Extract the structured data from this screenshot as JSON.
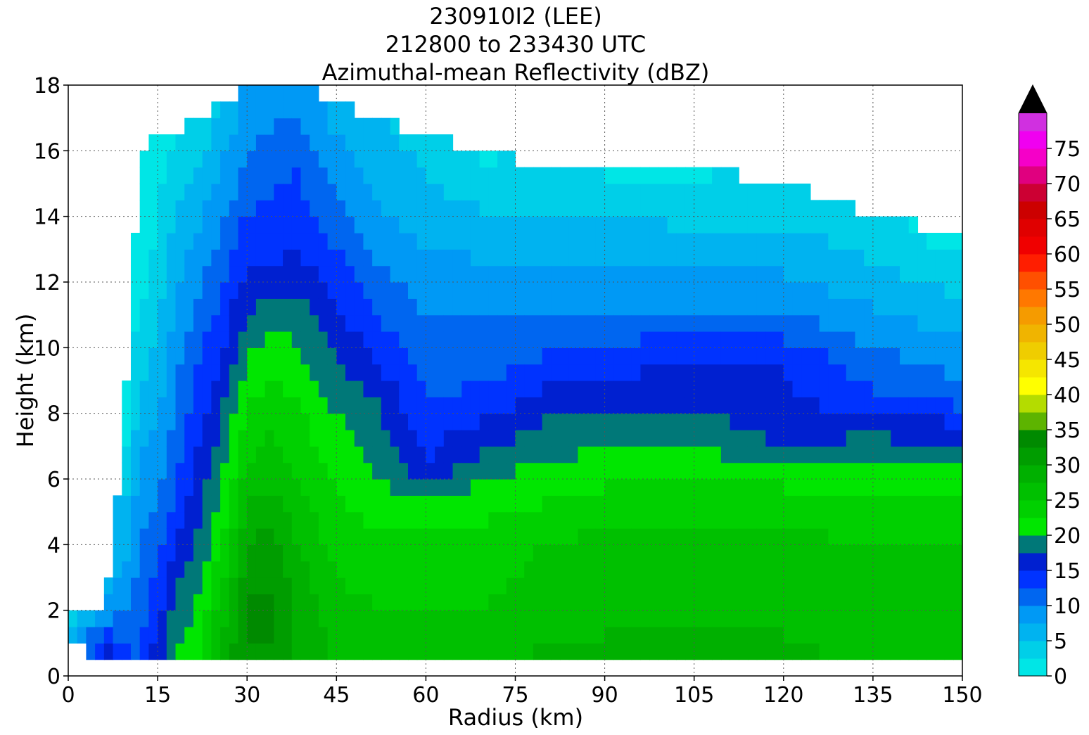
{
  "chart_data": {
    "type": "heatmap",
    "subtype": "filled-contour",
    "title_lines": [
      "230910I2 (LEE)",
      "212800 to 233430 UTC",
      "Azimuthal-mean Reflectivity (dBZ)"
    ],
    "xlabel": "Radius (km)",
    "ylabel": "Height (km)",
    "xlim": [
      0,
      150
    ],
    "ylim": [
      0,
      18
    ],
    "x_ticks": [
      0,
      15,
      30,
      45,
      60,
      75,
      90,
      105,
      120,
      135,
      150
    ],
    "y_ticks": [
      0,
      2,
      4,
      6,
      8,
      10,
      12,
      14,
      16,
      18
    ],
    "grid": true,
    "grid_style": "dotted",
    "colorbar": {
      "min": 0,
      "max": 80,
      "step": 2.5,
      "extend": "max",
      "tick_values": [
        0,
        5,
        10,
        15,
        20,
        25,
        30,
        35,
        40,
        45,
        50,
        55,
        60,
        65,
        70,
        75
      ],
      "colors": [
        "#00e6e6",
        "#00cfe8",
        "#00b3f0",
        "#0099f5",
        "#0066f0",
        "#0033ff",
        "#0020d0",
        "#007878",
        "#00e600",
        "#00d000",
        "#00c000",
        "#00b000",
        "#009d00",
        "#008a00",
        "#5db400",
        "#b4dc00",
        "#ffff00",
        "#f5e600",
        "#efcd00",
        "#f0b400",
        "#f59b00",
        "#ff7800",
        "#ff5000",
        "#ff1e00",
        "#f00000",
        "#e00000",
        "#cc0000",
        "#cc0033",
        "#e0007f",
        "#f500c8",
        "#f000f0",
        "#d030e0",
        "#a050d0",
        "#704090",
        "#402050"
      ],
      "extend_color": "#000000"
    },
    "field_description": "Azimuthal-mean reflectivity vs radius and height; grid has rows every 0.5 km from 0.5 to 18 km and columns every 1.5 km from 0 to 150 km; NaN regions are blank.",
    "profiles_by_radius": [
      {
        "r": 0,
        "min_z": 1.0,
        "top": 2.0,
        "levels": [
          {
            "h": 1.0,
            "v": 7
          },
          {
            "h": 1.5,
            "v": 4
          },
          {
            "h": 2.0,
            "v": 1
          }
        ]
      },
      {
        "r": 6,
        "min_z": 0.5,
        "top": 2.0,
        "levels": [
          {
            "h": 0.5,
            "v": 17
          },
          {
            "h": 1.5,
            "v": 12
          },
          {
            "h": 2.0,
            "v": 7
          }
        ]
      },
      {
        "r": 9,
        "min_z": 0.5,
        "top": 6.5,
        "levels": [
          {
            "h": 0.5,
            "v": 14
          },
          {
            "h": 3,
            "v": 7
          },
          {
            "h": 5,
            "v": 5
          },
          {
            "h": 6.5,
            "v": 1
          }
        ]
      },
      {
        "r": 12,
        "min_z": 0.5,
        "top": 16.0,
        "levels": [
          {
            "h": 0.5,
            "v": 12
          },
          {
            "h": 3,
            "v": 11
          },
          {
            "h": 6,
            "v": 8
          },
          {
            "h": 9,
            "v": 5
          },
          {
            "h": 12,
            "v": 1
          },
          {
            "h": 16,
            "v": 1
          }
        ]
      },
      {
        "r": 15,
        "min_z": 0.5,
        "top": 16.5,
        "levels": [
          {
            "h": 0.5,
            "v": 17
          },
          {
            "h": 2,
            "v": 14
          },
          {
            "h": 5,
            "v": 10
          },
          {
            "h": 9,
            "v": 6
          },
          {
            "h": 13,
            "v": 3
          },
          {
            "h": 16.5,
            "v": 1
          }
        ]
      },
      {
        "r": 18,
        "min_z": 0.5,
        "top": 16.5,
        "levels": [
          {
            "h": 0.5,
            "v": 20
          },
          {
            "h": 3,
            "v": 17
          },
          {
            "h": 6,
            "v": 12
          },
          {
            "h": 10,
            "v": 9
          },
          {
            "h": 14,
            "v": 5
          },
          {
            "h": 16.5,
            "v": 2
          }
        ]
      },
      {
        "r": 22,
        "min_z": 0.5,
        "top": 17.0,
        "levels": [
          {
            "h": 0.5,
            "v": 23
          },
          {
            "h": 3,
            "v": 19
          },
          {
            "h": 6,
            "v": 16
          },
          {
            "h": 10,
            "v": 12
          },
          {
            "h": 14,
            "v": 7
          },
          {
            "h": 17,
            "v": 3
          }
        ]
      },
      {
        "r": 26,
        "min_z": 0.5,
        "top": 17.5,
        "levels": [
          {
            "h": 0.5,
            "v": 29
          },
          {
            "h": 3,
            "v": 25
          },
          {
            "h": 6,
            "v": 20
          },
          {
            "h": 10,
            "v": 15
          },
          {
            "h": 13,
            "v": 11
          },
          {
            "h": 17.5,
            "v": 5
          }
        ]
      },
      {
        "r": 30,
        "min_z": 0.5,
        "top": 18.0,
        "levels": [
          {
            "h": 0.5,
            "v": 32
          },
          {
            "h": 2,
            "v": 33
          },
          {
            "h": 4,
            "v": 30
          },
          {
            "h": 6,
            "v": 26
          },
          {
            "h": 9,
            "v": 21
          },
          {
            "h": 12,
            "v": 16
          },
          {
            "h": 15,
            "v": 11
          },
          {
            "h": 18,
            "v": 8
          }
        ]
      },
      {
        "r": 34,
        "min_z": 0.5,
        "top": 18.0,
        "levels": [
          {
            "h": 0.5,
            "v": 32
          },
          {
            "h": 2,
            "v": 33
          },
          {
            "h": 4,
            "v": 31
          },
          {
            "h": 6,
            "v": 27
          },
          {
            "h": 8,
            "v": 24
          },
          {
            "h": 11,
            "v": 19
          },
          {
            "h": 13,
            "v": 14
          },
          {
            "h": 16,
            "v": 11
          },
          {
            "h": 18,
            "v": 8
          }
        ]
      },
      {
        "r": 38,
        "min_z": 0.5,
        "top": 18.0,
        "levels": [
          {
            "h": 0.5,
            "v": 30
          },
          {
            "h": 2,
            "v": 30
          },
          {
            "h": 4,
            "v": 28
          },
          {
            "h": 6,
            "v": 25
          },
          {
            "h": 8,
            "v": 23
          },
          {
            "h": 11,
            "v": 19
          },
          {
            "h": 13,
            "v": 15
          },
          {
            "h": 16,
            "v": 12
          },
          {
            "h": 18,
            "v": 9
          }
        ]
      },
      {
        "r": 45,
        "min_z": 0.5,
        "top": 17.5,
        "levels": [
          {
            "h": 0.5,
            "v": 27
          },
          {
            "h": 2,
            "v": 26
          },
          {
            "h": 4,
            "v": 24
          },
          {
            "h": 6,
            "v": 22
          },
          {
            "h": 8,
            "v": 20
          },
          {
            "h": 10,
            "v": 17
          },
          {
            "h": 12,
            "v": 14
          },
          {
            "h": 14,
            "v": 11
          },
          {
            "h": 17.5,
            "v": 6
          }
        ]
      },
      {
        "r": 52,
        "min_z": 0.5,
        "top": 17.0,
        "levels": [
          {
            "h": 0.5,
            "v": 26
          },
          {
            "h": 2,
            "v": 25
          },
          {
            "h": 4,
            "v": 23
          },
          {
            "h": 6,
            "v": 20
          },
          {
            "h": 8,
            "v": 18
          },
          {
            "h": 10,
            "v": 14
          },
          {
            "h": 12,
            "v": 11
          },
          {
            "h": 14,
            "v": 8
          },
          {
            "h": 17,
            "v": 5
          }
        ]
      },
      {
        "r": 60,
        "min_z": 0.5,
        "top": 16.5,
        "levels": [
          {
            "h": 0.5,
            "v": 27
          },
          {
            "h": 2,
            "v": 25
          },
          {
            "h": 4,
            "v": 23
          },
          {
            "h": 5.5,
            "v": 20
          },
          {
            "h": 6.5,
            "v": 15
          },
          {
            "h": 8,
            "v": 13
          },
          {
            "h": 10,
            "v": 11
          },
          {
            "h": 12,
            "v": 9
          },
          {
            "h": 14,
            "v": 6
          },
          {
            "h": 16.5,
            "v": 4
          }
        ]
      },
      {
        "r": 70,
        "min_z": 0.5,
        "top": 16.0,
        "levels": [
          {
            "h": 0.5,
            "v": 27
          },
          {
            "h": 2,
            "v": 25
          },
          {
            "h": 4,
            "v": 24
          },
          {
            "h": 6,
            "v": 20
          },
          {
            "h": 7.5,
            "v": 16
          },
          {
            "h": 9,
            "v": 12
          },
          {
            "h": 11,
            "v": 10
          },
          {
            "h": 13,
            "v": 7
          },
          {
            "h": 16,
            "v": 2
          }
        ]
      },
      {
        "r": 80,
        "min_z": 0.5,
        "top": 15.5,
        "levels": [
          {
            "h": 0.5,
            "v": 28
          },
          {
            "h": 2,
            "v": 26
          },
          {
            "h": 4,
            "v": 25
          },
          {
            "h": 6,
            "v": 21
          },
          {
            "h": 8,
            "v": 17
          },
          {
            "h": 9.5,
            "v": 13
          },
          {
            "h": 11,
            "v": 10
          },
          {
            "h": 13,
            "v": 7
          },
          {
            "h": 15.5,
            "v": 3
          }
        ]
      },
      {
        "r": 90,
        "min_z": 0.5,
        "top": 15.5,
        "levels": [
          {
            "h": 0.5,
            "v": 28
          },
          {
            "h": 2,
            "v": 27
          },
          {
            "h": 4,
            "v": 26
          },
          {
            "h": 6,
            "v": 22
          },
          {
            "h": 8,
            "v": 18
          },
          {
            "h": 9.5,
            "v": 14
          },
          {
            "h": 11,
            "v": 10
          },
          {
            "h": 13,
            "v": 7
          },
          {
            "h": 15.5,
            "v": 2
          }
        ]
      },
      {
        "r": 105,
        "min_z": 0.5,
        "top": 15.5,
        "levels": [
          {
            "h": 0.5,
            "v": 28
          },
          {
            "h": 2,
            "v": 27
          },
          {
            "h": 4,
            "v": 26
          },
          {
            "h": 6,
            "v": 22
          },
          {
            "h": 8,
            "v": 18
          },
          {
            "h": 10,
            "v": 14
          },
          {
            "h": 11.5,
            "v": 9
          },
          {
            "h": 13,
            "v": 6
          },
          {
            "h": 15.5,
            "v": 2
          }
        ]
      },
      {
        "r": 120,
        "min_z": 0.5,
        "top": 15.0,
        "levels": [
          {
            "h": 0.5,
            "v": 28
          },
          {
            "h": 2,
            "v": 27
          },
          {
            "h": 4,
            "v": 26
          },
          {
            "h": 6,
            "v": 22
          },
          {
            "h": 7.5,
            "v": 16
          },
          {
            "h": 9.5,
            "v": 15
          },
          {
            "h": 11,
            "v": 10
          },
          {
            "h": 12.5,
            "v": 7
          },
          {
            "h": 15,
            "v": 3
          }
        ]
      },
      {
        "r": 135,
        "min_z": 0.5,
        "top": 14.0,
        "levels": [
          {
            "h": 0.5,
            "v": 27
          },
          {
            "h": 2,
            "v": 27
          },
          {
            "h": 4,
            "v": 25
          },
          {
            "h": 6,
            "v": 21
          },
          {
            "h": 7.5,
            "v": 17
          },
          {
            "h": 8.5,
            "v": 13
          },
          {
            "h": 10,
            "v": 10
          },
          {
            "h": 12,
            "v": 6
          },
          {
            "h": 14,
            "v": 3
          }
        ]
      },
      {
        "r": 150,
        "min_z": 0.5,
        "top": 13.5,
        "levels": [
          {
            "h": 0.5,
            "v": 27
          },
          {
            "h": 2,
            "v": 27
          },
          {
            "h": 4,
            "v": 25
          },
          {
            "h": 6,
            "v": 21
          },
          {
            "h": 7.5,
            "v": 16
          },
          {
            "h": 8.5,
            "v": 11
          },
          {
            "h": 10,
            "v": 8
          },
          {
            "h": 12,
            "v": 4
          },
          {
            "h": 13.5,
            "v": 1
          }
        ]
      }
    ]
  }
}
